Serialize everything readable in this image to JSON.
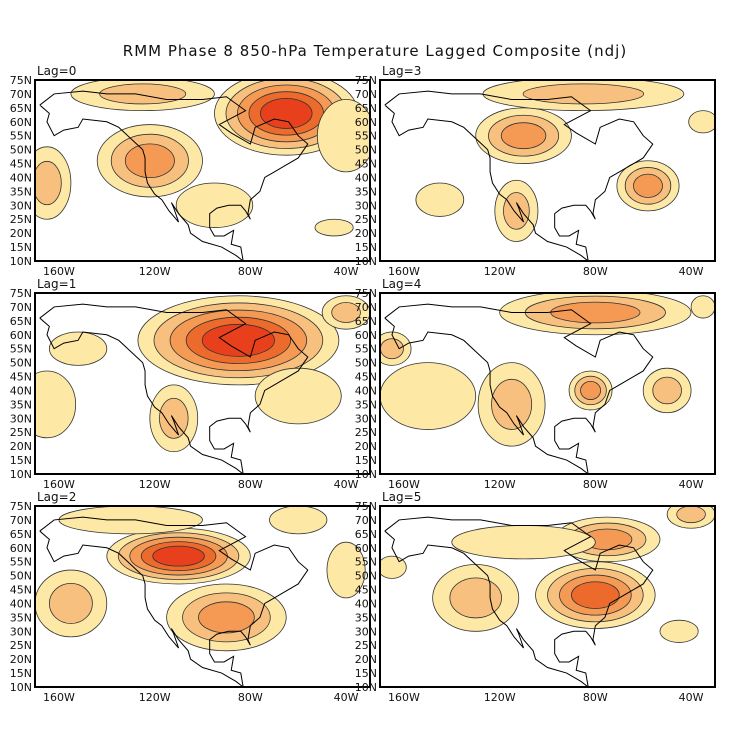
{
  "title": "RMM Phase 8 850-hPa Temperature Lagged Composite (ndj)",
  "lat_ticks": [
    "75N",
    "70N",
    "65N",
    "60N",
    "55N",
    "50N",
    "45N",
    "40N",
    "35N",
    "30N",
    "25N",
    "20N",
    "15N",
    "10N"
  ],
  "lon_ticks": [
    "160W",
    "120W",
    "80W",
    "40W"
  ],
  "colors": {
    "warm": [
      "#fde8a6",
      "#f8c07e",
      "#f49a54",
      "#ec6b2c",
      "#e8401c"
    ],
    "cold": [
      "#d7f5fb",
      "#a8dcf4",
      "#80bbee",
      "#5d97e0"
    ]
  },
  "panels": [
    {
      "label": "Lag=0",
      "features": [
        [
          -65,
          63,
          30,
          15,
          5
        ],
        [
          -122,
          46,
          22,
          13,
          3
        ],
        [
          -40,
          55,
          12,
          13,
          1
        ],
        [
          -125,
          70,
          30,
          6,
          2
        ],
        [
          -165,
          38,
          10,
          13,
          2
        ],
        [
          -95,
          30,
          16,
          8,
          1
        ],
        [
          -45,
          22,
          8,
          3,
          1
        ]
      ]
    },
    {
      "label": "Lag=3",
      "features": [
        [
          -110,
          55,
          20,
          10,
          3
        ],
        [
          -85,
          70,
          42,
          6,
          2
        ],
        [
          -58,
          37,
          13,
          9,
          3
        ],
        [
          -113,
          28,
          9,
          11,
          2
        ],
        [
          -145,
          32,
          10,
          6,
          1
        ],
        [
          -35,
          60,
          6,
          4,
          1
        ]
      ]
    },
    {
      "label": "Lag=1",
      "features": [
        [
          -85,
          58,
          42,
          16,
          5
        ],
        [
          -152,
          55,
          12,
          6,
          1
        ],
        [
          -165,
          35,
          12,
          12,
          1
        ],
        [
          -112,
          30,
          10,
          12,
          2
        ],
        [
          -40,
          68,
          10,
          6,
          2
        ],
        [
          -60,
          38,
          18,
          10,
          1
        ]
      ]
    },
    {
      "label": "Lag=4",
      "features": [
        [
          -80,
          68,
          40,
          8,
          3
        ],
        [
          -115,
          35,
          14,
          15,
          2
        ],
        [
          -82,
          40,
          9,
          7,
          3
        ],
        [
          -165,
          55,
          8,
          6,
          2
        ],
        [
          -150,
          38,
          20,
          12,
          1
        ],
        [
          -50,
          40,
          10,
          8,
          2
        ],
        [
          -35,
          70,
          5,
          4,
          1
        ]
      ]
    },
    {
      "label": "Lag=2",
      "features": [
        [
          -110,
          57,
          30,
          10,
          5
        ],
        [
          -90,
          35,
          25,
          12,
          3
        ],
        [
          -155,
          40,
          15,
          12,
          2
        ],
        [
          -130,
          70,
          30,
          5,
          1
        ],
        [
          -40,
          52,
          8,
          10,
          1
        ],
        [
          -60,
          70,
          12,
          5,
          1
        ]
      ]
    },
    {
      "label": "Lag=5",
      "features": [
        [
          -80,
          43,
          25,
          12,
          4
        ],
        [
          -75,
          63,
          22,
          8,
          3
        ],
        [
          -130,
          42,
          18,
          12,
          2
        ],
        [
          -110,
          62,
          30,
          6,
          1
        ],
        [
          -40,
          72,
          10,
          5,
          2
        ],
        [
          -165,
          53,
          6,
          4,
          1
        ],
        [
          -45,
          30,
          8,
          4,
          1
        ]
      ]
    }
  ]
}
